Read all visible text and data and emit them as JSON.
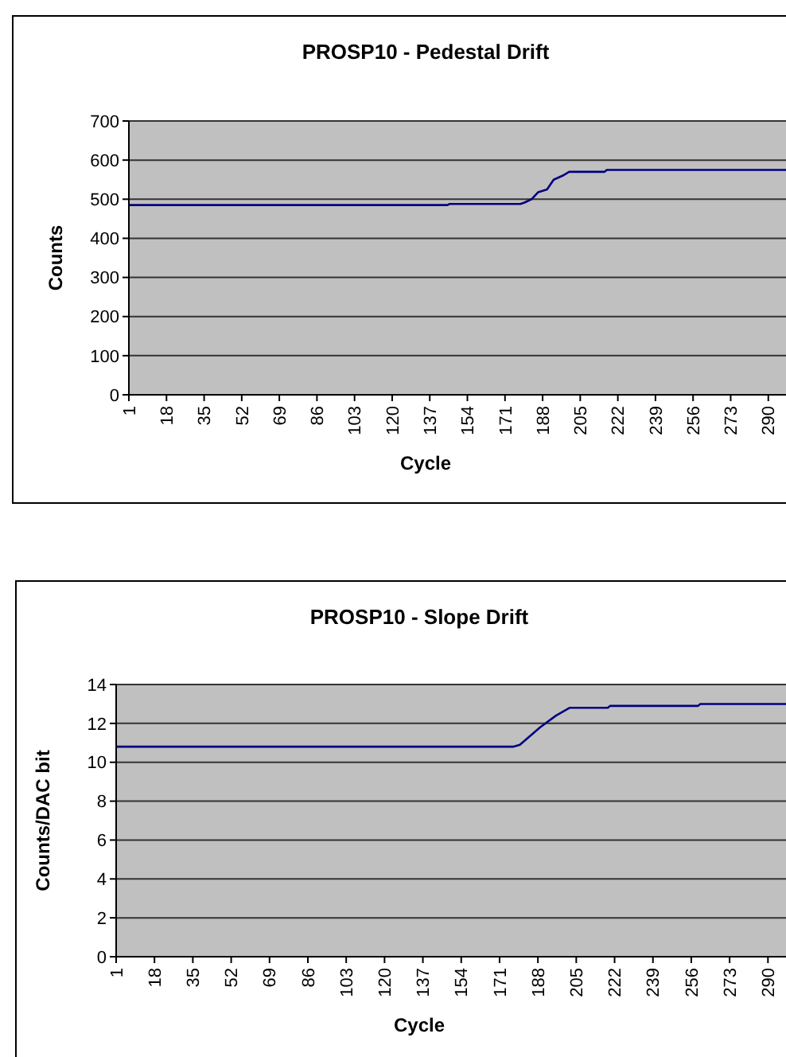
{
  "chart_data": [
    {
      "type": "line",
      "title": "PROSP10 - Pedestal Drift",
      "xlabel": "Cycle",
      "ylabel": "Counts",
      "xlim": [
        1,
        298
      ],
      "xticks": [
        1,
        18,
        35,
        52,
        69,
        86,
        103,
        120,
        137,
        154,
        171,
        188,
        205,
        222,
        239,
        256,
        273,
        290
      ],
      "ylim": [
        0,
        700
      ],
      "yticks": [
        0,
        100,
        200,
        300,
        400,
        500,
        600,
        700
      ],
      "grid": "y",
      "marker": "none",
      "line_style": "solid",
      "series": [
        {
          "color": "#000080",
          "x": [
            1,
            145,
            146,
            178,
            180,
            183,
            186,
            190,
            193,
            197,
            200,
            216,
            217,
            298
          ],
          "values": [
            485,
            485,
            488,
            488,
            492,
            500,
            518,
            525,
            550,
            560,
            570,
            570,
            575,
            575
          ]
        }
      ]
    },
    {
      "type": "line",
      "title": "PROSP10 - Slope Drift",
      "xlabel": "Cycle",
      "ylabel": "Counts/DAC bit",
      "xlim": [
        1,
        298
      ],
      "xticks": [
        1,
        18,
        35,
        52,
        69,
        86,
        103,
        120,
        137,
        154,
        171,
        188,
        205,
        222,
        239,
        256,
        273,
        290
      ],
      "ylim": [
        0,
        14
      ],
      "yticks": [
        0,
        2,
        4,
        6,
        8,
        10,
        12,
        14
      ],
      "grid": "y",
      "marker": "none",
      "line_style": "solid",
      "series": [
        {
          "color": "#000080",
          "x": [
            1,
            177,
            180,
            189,
            196,
            202,
            219,
            220,
            259,
            260,
            298
          ],
          "values": [
            10.8,
            10.8,
            10.9,
            11.8,
            12.4,
            12.8,
            12.8,
            12.9,
            12.9,
            13.0,
            13.0
          ]
        }
      ]
    }
  ]
}
